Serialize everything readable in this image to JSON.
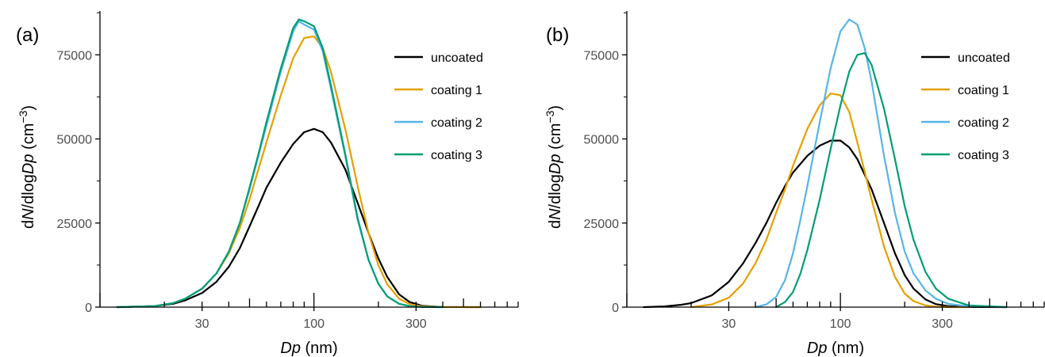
{
  "chart_data": [
    {
      "type": "line",
      "panel_label": "(a)",
      "x_scale": "log",
      "xlim": [
        10,
        900
      ],
      "ylim": [
        0,
        88000
      ],
      "x_ticks": [
        30,
        100,
        300
      ],
      "x_tick_labels": [
        "30",
        "100",
        "300"
      ],
      "y_ticks": [
        0,
        25000,
        50000,
        75000
      ],
      "y_tick_labels": [
        "0",
        "25000",
        "50000",
        "75000"
      ],
      "xlabel": {
        "italic": "Dp",
        "rest": " (nm)"
      },
      "ylabel": {
        "p1": "d",
        "p2": "N",
        "p3": "/dlog",
        "p4": "Dp",
        "p5": " (cm",
        "sup": "−3",
        "p6": ")"
      },
      "grid": false,
      "legend_position": "top-right",
      "series": [
        {
          "name": "uncoated",
          "color": "#000000",
          "x": [
            12,
            18,
            22,
            25,
            30,
            35,
            40,
            45,
            50,
            55,
            60,
            70,
            80,
            90,
            100,
            110,
            120,
            140,
            160,
            180,
            200,
            220,
            250,
            280,
            320,
            400,
            600
          ],
          "y": [
            0,
            300,
            1000,
            2000,
            4200,
            7500,
            12000,
            17500,
            24000,
            30000,
            35500,
            43000,
            48500,
            52000,
            53000,
            52000,
            49000,
            41000,
            31000,
            22000,
            14500,
            9000,
            3800,
            1500,
            400,
            50,
            0
          ]
        },
        {
          "name": "coating 1",
          "color": "#E69F00",
          "x": [
            12,
            18,
            22,
            25,
            30,
            35,
            40,
            45,
            50,
            55,
            60,
            70,
            80,
            90,
            100,
            110,
            120,
            140,
            160,
            180,
            200,
            220,
            250,
            280,
            320,
            400,
            600
          ],
          "y": [
            0,
            300,
            1200,
            2500,
            5500,
            10000,
            16000,
            23500,
            32000,
            41000,
            49000,
            63000,
            74000,
            80000,
            80500,
            77000,
            70000,
            53000,
            36000,
            22000,
            12500,
            6800,
            2500,
            900,
            200,
            20,
            0
          ]
        },
        {
          "name": "coating 2",
          "color": "#56B4E9",
          "x": [
            12,
            18,
            22,
            25,
            30,
            35,
            40,
            45,
            50,
            55,
            60,
            70,
            80,
            85,
            90,
            100,
            110,
            120,
            140,
            160,
            180,
            200,
            220,
            250,
            280,
            320,
            400
          ],
          "y": [
            0,
            300,
            1200,
            2500,
            5500,
            10000,
            16500,
            25000,
            35000,
            45000,
            54000,
            70000,
            82000,
            85000,
            84000,
            82500,
            76000,
            65000,
            45000,
            26000,
            14000,
            7000,
            3200,
            1000,
            300,
            50,
            0
          ]
        },
        {
          "name": "coating 3",
          "color": "#009E73",
          "x": [
            12,
            18,
            22,
            25,
            30,
            35,
            40,
            45,
            50,
            55,
            60,
            70,
            80,
            85,
            90,
            100,
            110,
            120,
            140,
            160,
            180,
            200,
            220,
            250,
            280,
            320,
            400
          ],
          "y": [
            0,
            300,
            1200,
            2500,
            5500,
            10000,
            16500,
            25000,
            35500,
            45500,
            55000,
            71000,
            83000,
            85500,
            85000,
            83500,
            77000,
            66000,
            45500,
            26500,
            14000,
            7000,
            3200,
            1000,
            300,
            50,
            0
          ]
        }
      ]
    },
    {
      "type": "line",
      "panel_label": "(b)",
      "x_scale": "log",
      "xlim": [
        10,
        900
      ],
      "ylim": [
        0,
        88000
      ],
      "x_ticks": [
        30,
        100,
        300
      ],
      "x_tick_labels": [
        "30",
        "100",
        "300"
      ],
      "y_ticks": [
        0,
        25000,
        50000,
        75000
      ],
      "y_tick_labels": [
        "0",
        "25000",
        "50000",
        "75000"
      ],
      "xlabel": {
        "italic": "Dp",
        "rest": " (nm)"
      },
      "ylabel": {
        "p1": "d",
        "p2": "N",
        "p3": "/dlog",
        "p4": "Dp",
        "p5": " (cm",
        "sup": "−3",
        "p6": ")"
      },
      "grid": false,
      "legend_position": "top-right",
      "series": [
        {
          "name": "uncoated",
          "color": "#000000",
          "x": [
            12,
            15,
            18,
            20,
            25,
            30,
            35,
            40,
            45,
            50,
            55,
            60,
            70,
            80,
            90,
            100,
            110,
            120,
            140,
            160,
            180,
            200,
            220,
            250,
            280,
            320,
            400,
            600
          ],
          "y": [
            0,
            200,
            700,
            1200,
            3500,
            7500,
            13000,
            19000,
            25000,
            31000,
            36000,
            40000,
            45000,
            48000,
            49500,
            49500,
            47500,
            44000,
            35000,
            25000,
            16000,
            9500,
            5500,
            2300,
            900,
            300,
            50,
            0
          ]
        },
        {
          "name": "coating 1",
          "color": "#E69F00",
          "x": [
            20,
            25,
            30,
            35,
            40,
            45,
            50,
            55,
            60,
            70,
            80,
            90,
            100,
            110,
            120,
            140,
            160,
            180,
            200,
            220,
            250,
            280,
            320,
            400
          ],
          "y": [
            0,
            800,
            2800,
            7000,
            13000,
            20000,
            28000,
            35000,
            42000,
            53000,
            60000,
            63500,
            63000,
            58000,
            49000,
            32000,
            18000,
            9000,
            4000,
            1800,
            500,
            150,
            30,
            0
          ]
        },
        {
          "name": "coating 2",
          "color": "#56B4E9",
          "x": [
            40,
            45,
            50,
            55,
            60,
            65,
            70,
            80,
            90,
            100,
            110,
            120,
            130,
            140,
            160,
            180,
            200,
            220,
            250,
            280,
            320,
            400,
            600
          ],
          "y": [
            0,
            800,
            3000,
            8000,
            16000,
            26000,
            36000,
            55000,
            71000,
            82000,
            85500,
            84000,
            77000,
            67000,
            45000,
            28000,
            16500,
            10000,
            5000,
            2500,
            1000,
            200,
            0
          ]
        },
        {
          "name": "coating 3",
          "color": "#009E73",
          "x": [
            50,
            55,
            60,
            65,
            70,
            80,
            90,
            100,
            110,
            120,
            130,
            140,
            160,
            180,
            200,
            220,
            250,
            280,
            320,
            400,
            600
          ],
          "y": [
            0,
            1500,
            4500,
            10000,
            17000,
            32000,
            47000,
            60000,
            70000,
            75000,
            75500,
            72000,
            59000,
            44000,
            30000,
            20000,
            10500,
            5500,
            2500,
            500,
            0
          ]
        }
      ]
    }
  ]
}
